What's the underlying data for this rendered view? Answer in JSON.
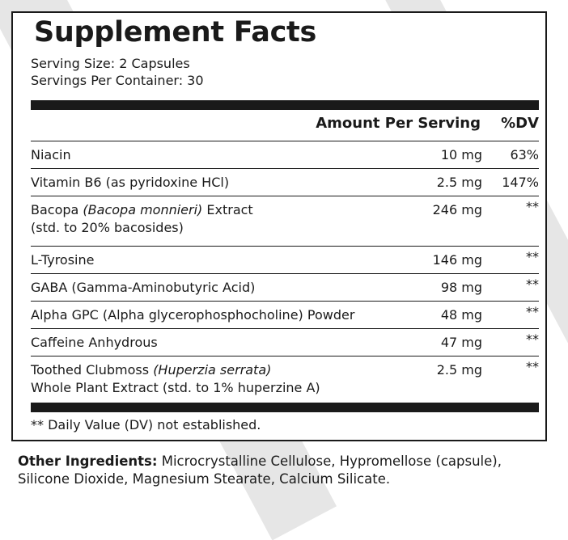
{
  "title": "Supplement Facts",
  "serving_size": "Serving Size: 2 Capsules",
  "servings_per_container": "Servings Per Container: 30",
  "header": {
    "amount": "Amount Per Serving",
    "dv": "%DV"
  },
  "rows": [
    {
      "name": "Niacin",
      "amount": "10 mg",
      "dv": "63%"
    },
    {
      "name": "Vitamin B6 (as pyridoxine HCl)",
      "amount": "2.5 mg",
      "dv": "147%"
    },
    {
      "name_pre": "Bacopa ",
      "name_latin": "(Bacopa monnieri)",
      "name_post": " Extract",
      "name_line2": "(std. to 20% bacosides)",
      "amount": "246 mg",
      "dv": "**"
    },
    {
      "name": "L-Tyrosine",
      "amount": "146 mg",
      "dv": "**"
    },
    {
      "name": "GABA (Gamma-Aminobutyric Acid)",
      "amount": "98 mg",
      "dv": "**"
    },
    {
      "name": "Alpha GPC (Alpha glycerophosphocholine) Powder",
      "amount": "48 mg",
      "dv": "**"
    },
    {
      "name": "Caffeine Anhydrous",
      "amount": "47 mg",
      "dv": "**"
    },
    {
      "name_pre": "Toothed Clubmoss ",
      "name_latin": "(Huperzia serrata)",
      "name_post": "",
      "name_line2": "Whole Plant Extract (std. to 1% huperzine A)",
      "amount": "2.5 mg",
      "dv": "**"
    }
  ],
  "footnote": "** Daily Value (DV) not established.",
  "other_ingredients": {
    "label": "Other Ingredients:",
    "text": " Microcrystalline Cellulose, Hypromellose (capsule), Silicone Dioxide, Magnesium Stearate, Calcium Silicate."
  }
}
